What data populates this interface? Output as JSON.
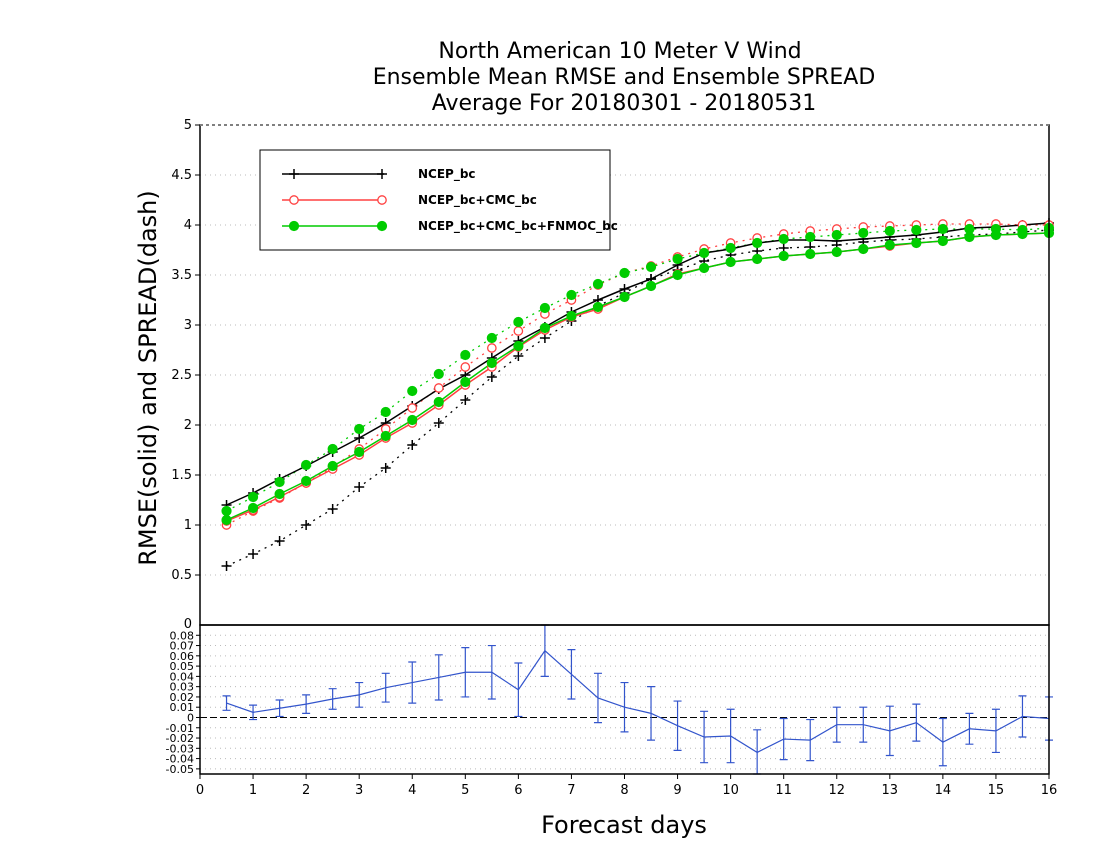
{
  "chart_data": [
    {
      "type": "line",
      "title": [
        "North American 10 Meter V Wind",
        "Ensemble Mean RMSE and Ensemble SPREAD",
        "Average For 20180301 - 20180531"
      ],
      "ylabel": "RMSE(solid) and SPREAD(dash)",
      "xlabel": "Forecast days",
      "xlim": [
        0,
        16
      ],
      "ylim": [
        0,
        5
      ],
      "yticks": [
        "0.5",
        "1",
        "1.5",
        "2",
        "2.5",
        "3",
        "3.5",
        "4",
        "4.5",
        "5"
      ],
      "grid": true,
      "legend_position": "top-left",
      "x": [
        0.5,
        1,
        1.5,
        2,
        2.5,
        3,
        3.5,
        4,
        4.5,
        5,
        5.5,
        6,
        6.5,
        7,
        7.5,
        8,
        8.5,
        9,
        9.5,
        10,
        10.5,
        11,
        11.5,
        12,
        12.5,
        13,
        13.5,
        14,
        14.5,
        15,
        15.5,
        16
      ],
      "series": [
        {
          "name": "NCEP_bc",
          "color": "#000000",
          "marker": "plus",
          "rmse": [
            1.2,
            1.32,
            1.46,
            1.59,
            1.73,
            1.87,
            2.02,
            2.19,
            2.36,
            2.5,
            2.67,
            2.84,
            2.98,
            3.13,
            3.25,
            3.36,
            3.46,
            3.6,
            3.72,
            3.76,
            3.82,
            3.85,
            3.85,
            3.84,
            3.86,
            3.88,
            3.9,
            3.93,
            3.97,
            3.98,
            4.0,
            4.02
          ],
          "spread": [
            0.59,
            0.71,
            0.84,
            1.0,
            1.16,
            1.38,
            1.57,
            1.8,
            2.02,
            2.25,
            2.48,
            2.69,
            2.87,
            3.04,
            3.19,
            3.32,
            3.46,
            3.55,
            3.64,
            3.7,
            3.74,
            3.77,
            3.78,
            3.8,
            3.83,
            3.85,
            3.86,
            3.88,
            3.9,
            3.91,
            3.93,
            3.95
          ]
        },
        {
          "name": "NCEP_bc+CMC_bc",
          "color": "#ff4040",
          "marker": "open-circle",
          "rmse": [
            1.04,
            1.15,
            1.28,
            1.42,
            1.56,
            1.7,
            1.87,
            2.02,
            2.2,
            2.4,
            2.58,
            2.78,
            2.95,
            3.08,
            3.16,
            3.28,
            3.39,
            3.51,
            3.57,
            3.63,
            3.66,
            3.69,
            3.71,
            3.73,
            3.76,
            3.79,
            3.82,
            3.84,
            3.88,
            3.9,
            3.91,
            3.92
          ],
          "spread": [
            1.0,
            1.14,
            1.27,
            1.42,
            1.58,
            1.76,
            1.96,
            2.17,
            2.37,
            2.58,
            2.77,
            2.94,
            3.11,
            3.25,
            3.4,
            3.52,
            3.59,
            3.68,
            3.76,
            3.82,
            3.87,
            3.91,
            3.94,
            3.96,
            3.98,
            3.99,
            4.0,
            4.01,
            4.01,
            4.01,
            4.0,
            4.0
          ]
        },
        {
          "name": "NCEP_bc+CMC_bc+FNMOC_bc",
          "color": "#00cc00",
          "marker": "filled-circle",
          "rmse": [
            1.05,
            1.17,
            1.31,
            1.44,
            1.59,
            1.73,
            1.89,
            2.05,
            2.23,
            2.43,
            2.62,
            2.79,
            2.97,
            3.09,
            3.18,
            3.28,
            3.39,
            3.5,
            3.57,
            3.63,
            3.66,
            3.69,
            3.71,
            3.73,
            3.76,
            3.8,
            3.82,
            3.84,
            3.88,
            3.9,
            3.91,
            3.92
          ],
          "spread": [
            1.14,
            1.28,
            1.43,
            1.6,
            1.76,
            1.96,
            2.13,
            2.34,
            2.51,
            2.7,
            2.87,
            3.03,
            3.17,
            3.3,
            3.41,
            3.52,
            3.58,
            3.66,
            3.72,
            3.77,
            3.82,
            3.86,
            3.88,
            3.9,
            3.92,
            3.94,
            3.95,
            3.96,
            3.96,
            3.96,
            3.95,
            3.97
          ]
        }
      ]
    },
    {
      "type": "line",
      "xlim": [
        0,
        16
      ],
      "ylim": [
        -0.055,
        0.09
      ],
      "xticks": [
        "0",
        "1",
        "2",
        "3",
        "4",
        "5",
        "6",
        "7",
        "8",
        "9",
        "10",
        "11",
        "12",
        "13",
        "14",
        "15",
        "16"
      ],
      "yticks": [
        "-0.05",
        "-0.04",
        "-0.03",
        "-0.02",
        "-0.01",
        "0",
        "0.01",
        "0.02",
        "0.03",
        "0.04",
        "0.05",
        "0.06",
        "0.07",
        "0.08"
      ],
      "grid": true,
      "x": [
        0.5,
        1,
        1.5,
        2,
        2.5,
        3,
        3.5,
        4,
        4.5,
        5,
        5.5,
        6,
        6.5,
        7,
        7.5,
        8,
        8.5,
        9,
        9.5,
        10,
        10.5,
        11,
        11.5,
        12,
        12.5,
        13,
        13.5,
        14,
        14.5,
        15,
        15.5,
        16
      ],
      "series": [
        {
          "color": "#3355cc",
          "values": [
            0.014,
            0.005,
            0.009,
            0.013,
            0.018,
            0.022,
            0.029,
            0.034,
            0.039,
            0.044,
            0.044,
            0.027,
            0.065,
            0.042,
            0.019,
            0.01,
            0.004,
            -0.008,
            -0.019,
            -0.018,
            -0.034,
            -0.021,
            -0.022,
            -0.007,
            -0.007,
            -0.013,
            -0.005,
            -0.024,
            -0.011,
            -0.013,
            0.001,
            -0.001
          ],
          "error": [
            0.007,
            0.007,
            0.008,
            0.009,
            0.01,
            0.012,
            0.014,
            0.02,
            0.022,
            0.024,
            0.026,
            0.026,
            0.025,
            0.024,
            0.024,
            0.024,
            0.026,
            0.024,
            0.025,
            0.026,
            0.022,
            0.02,
            0.02,
            0.017,
            0.017,
            0.024,
            0.018,
            0.023,
            0.015,
            0.021,
            0.02,
            0.021
          ]
        }
      ]
    }
  ]
}
